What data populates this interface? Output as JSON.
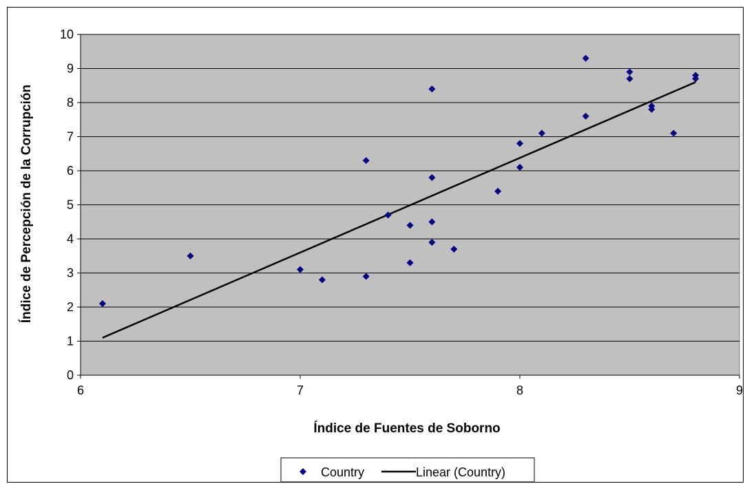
{
  "chart_data": {
    "type": "scatter",
    "xlabel": "Índice de Fuentes de Soborno",
    "ylabel": "Índice de Percepción de la Corrupción",
    "xlim": [
      6,
      9
    ],
    "ylim": [
      0,
      10
    ],
    "x_ticks": [
      "6",
      "7",
      "8",
      "9"
    ],
    "y_ticks": [
      "0",
      "1",
      "2",
      "3",
      "4",
      "5",
      "6",
      "7",
      "8",
      "9",
      "10"
    ],
    "grid": "horizontal",
    "plot_background": "#c0c0c0",
    "legend_position": "bottom",
    "series": [
      {
        "name": "Country",
        "marker": "diamond",
        "color": "#000080",
        "points": [
          [
            6.1,
            2.1
          ],
          [
            6.5,
            3.5
          ],
          [
            7.0,
            3.1
          ],
          [
            7.1,
            2.8
          ],
          [
            7.3,
            6.3
          ],
          [
            7.3,
            2.9
          ],
          [
            7.4,
            4.7
          ],
          [
            7.5,
            4.4
          ],
          [
            7.5,
            3.3
          ],
          [
            7.6,
            8.4
          ],
          [
            7.6,
            5.8
          ],
          [
            7.6,
            4.5
          ],
          [
            7.6,
            3.9
          ],
          [
            7.7,
            3.7
          ],
          [
            7.9,
            5.4
          ],
          [
            8.0,
            6.8
          ],
          [
            8.0,
            6.1
          ],
          [
            8.1,
            7.1
          ],
          [
            8.3,
            9.3
          ],
          [
            8.3,
            7.6
          ],
          [
            8.5,
            8.9
          ],
          [
            8.5,
            8.7
          ],
          [
            8.6,
            7.9
          ],
          [
            8.6,
            7.8
          ],
          [
            8.7,
            7.1
          ],
          [
            8.8,
            8.8
          ],
          [
            8.8,
            8.7
          ]
        ]
      },
      {
        "name": "Linear (Country)",
        "line": "trendline",
        "color": "#000000",
        "points": [
          [
            6.1,
            1.1
          ],
          [
            8.8,
            8.6
          ]
        ]
      }
    ]
  }
}
